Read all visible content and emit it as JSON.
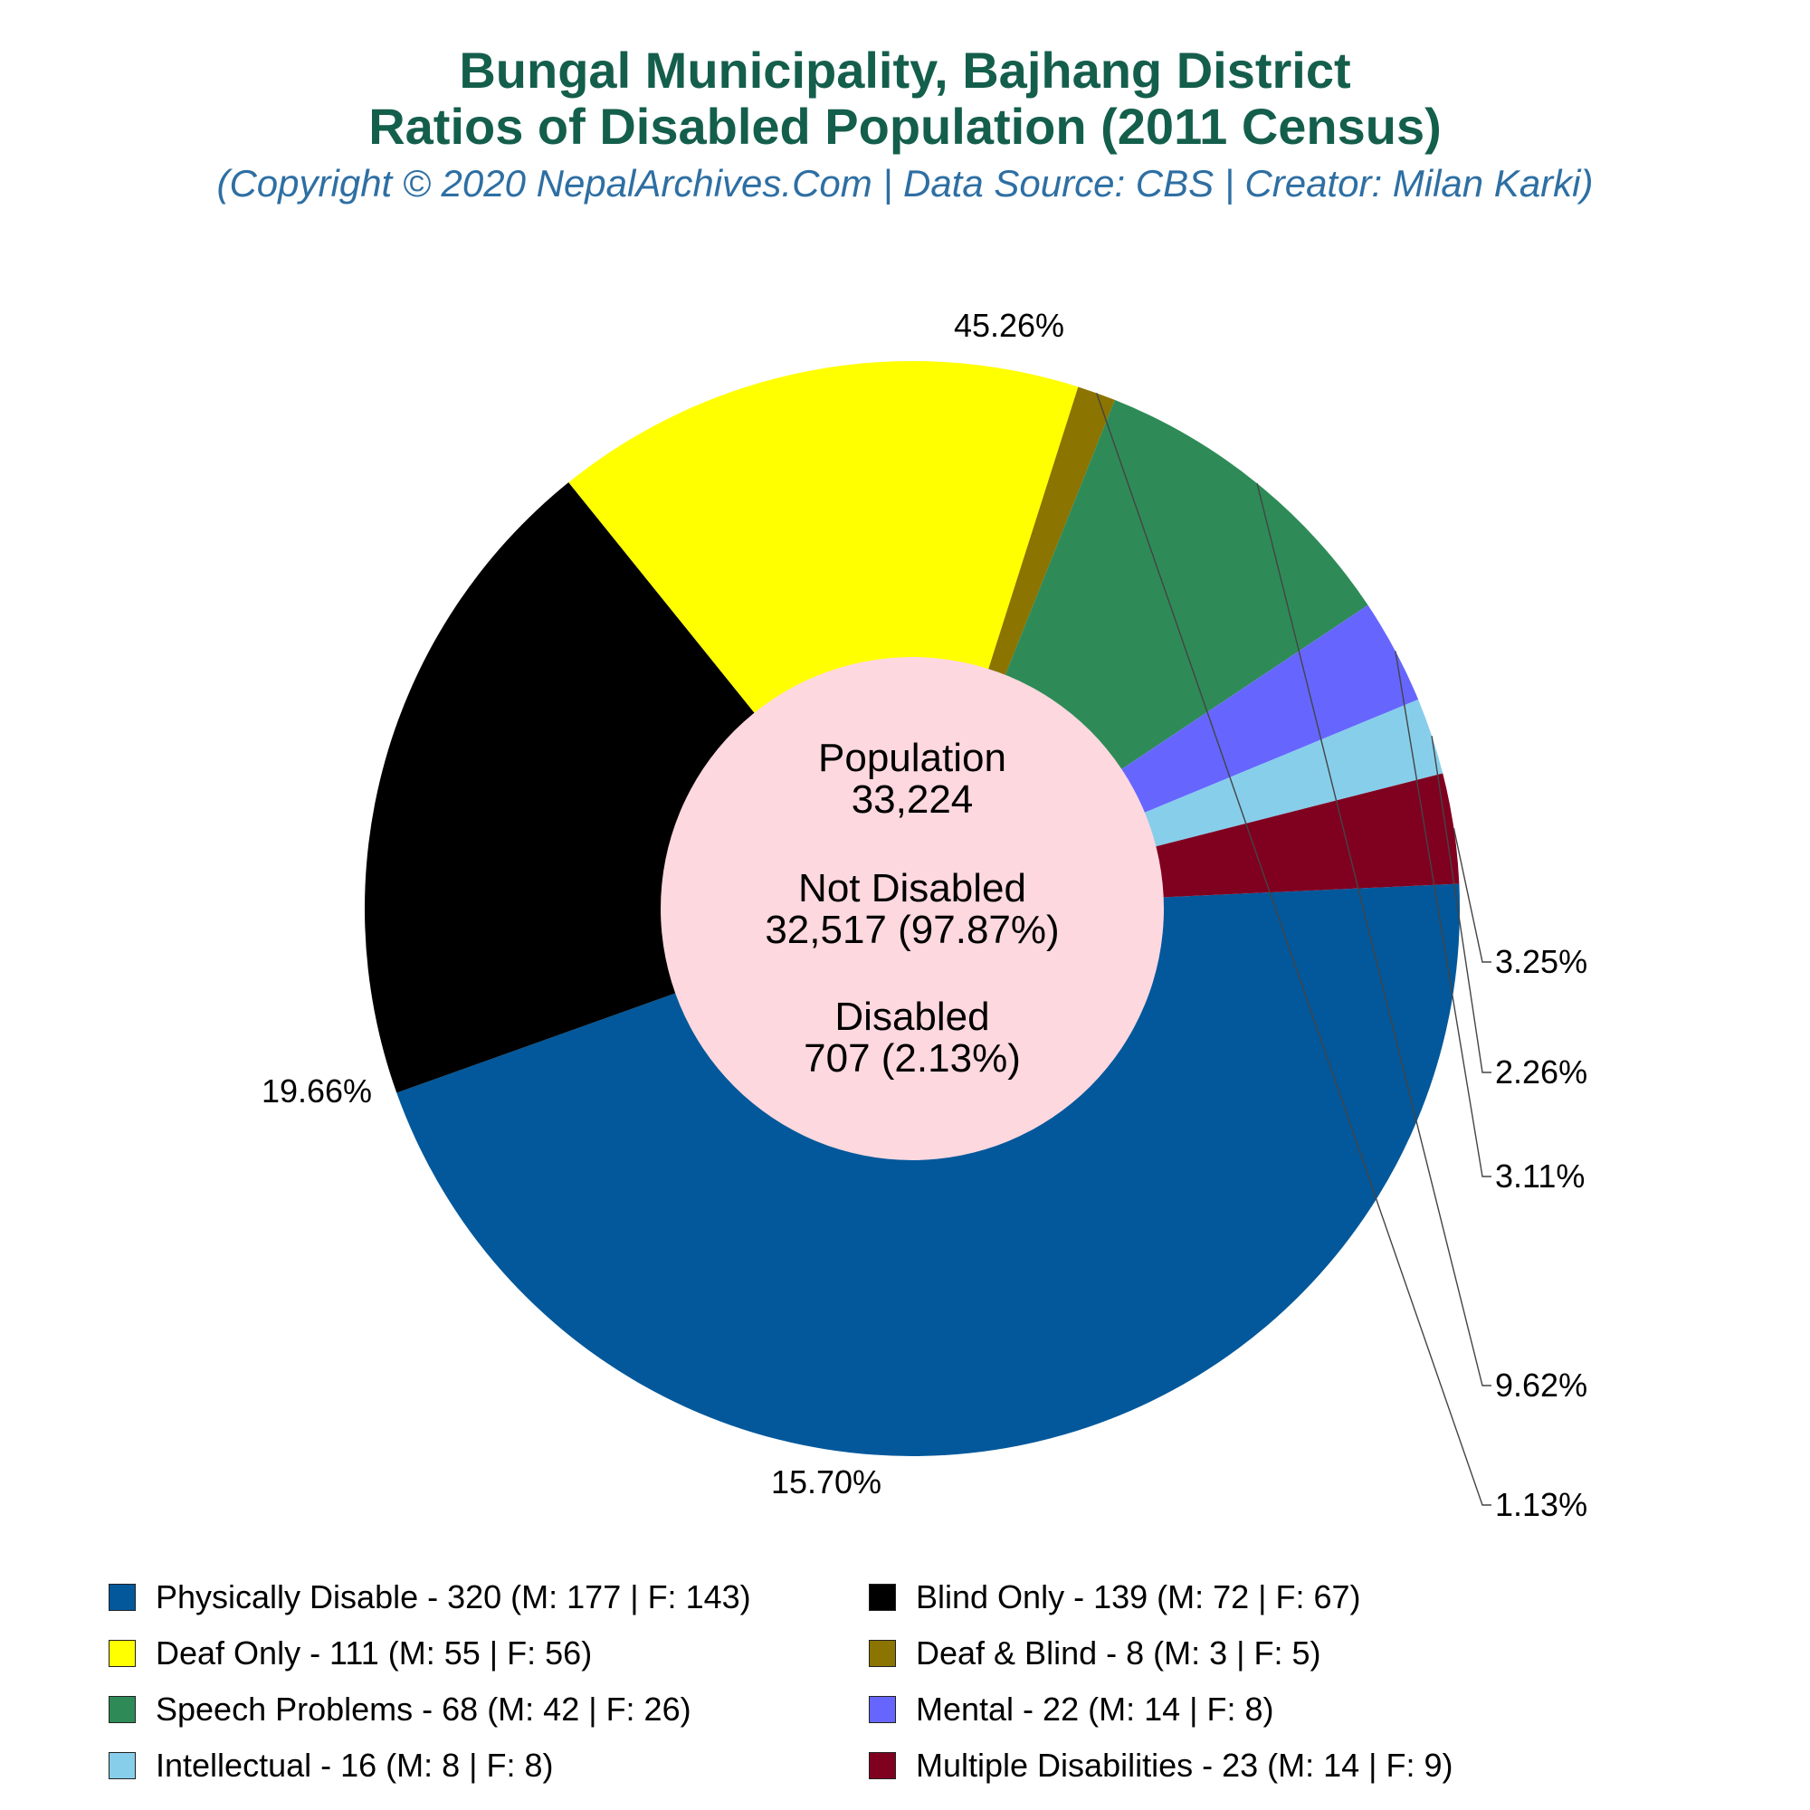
{
  "header": {
    "title_line1": "Bungal Municipality, Bajhang District",
    "title_line2": "Ratios of Disabled Population (2011 Census)",
    "subtitle": "(Copyright © 2020 NepalArchives.Com | Data Source: CBS | Creator: Milan Karki)"
  },
  "center": {
    "population_label": "Population",
    "population_value": "33,224",
    "not_disabled_label": "Not Disabled",
    "not_disabled_value": "32,517 (97.87%)",
    "disabled_label": "Disabled",
    "disabled_value": "707 (2.13%)"
  },
  "chart_data": {
    "type": "pie",
    "donut": true,
    "slices": [
      {
        "name": "Physically Disable",
        "value": 320,
        "male": 177,
        "female": 143,
        "percent_label": "45.26%",
        "color": "#02589b",
        "legend": "Physically Disable - 320 (M: 177 | F: 143)"
      },
      {
        "name": "Blind Only",
        "value": 139,
        "male": 72,
        "female": 67,
        "percent_label": "19.66%",
        "color": "#000000",
        "legend": "Blind Only - 139 (M: 72 | F: 67)"
      },
      {
        "name": "Deaf Only",
        "value": 111,
        "male": 55,
        "female": 56,
        "percent_label": "15.70%",
        "color": "#ffff00",
        "legend": "Deaf Only - 111 (M: 55 | F: 56)"
      },
      {
        "name": "Deaf & Blind",
        "value": 8,
        "male": 3,
        "female": 5,
        "percent_label": "1.13%",
        "color": "#8b7400",
        "legend": "Deaf & Blind - 8 (M: 3 | F: 5)"
      },
      {
        "name": "Speech Problems",
        "value": 68,
        "male": 42,
        "female": 26,
        "percent_label": "9.62%",
        "color": "#2e8b57",
        "legend": "Speech Problems - 68 (M: 42 | F: 26)"
      },
      {
        "name": "Mental",
        "value": 22,
        "male": 14,
        "female": 8,
        "percent_label": "3.11%",
        "color": "#6666ff",
        "legend": "Mental - 22 (M: 14 | F: 8)"
      },
      {
        "name": "Intellectual",
        "value": 16,
        "male": 8,
        "female": 8,
        "percent_label": "2.26%",
        "color": "#87ceeb",
        "legend": "Intellectual - 16 (M: 8 | F: 8)"
      },
      {
        "name": "Multiple Disabilities",
        "value": 23,
        "male": 14,
        "female": 9,
        "percent_label": "3.25%",
        "color": "#800020",
        "legend": "Multiple Disabilities - 23 (M: 14 | F: 9)"
      }
    ],
    "center_fill": "#fdd8df",
    "legend_placement": "bottom"
  }
}
